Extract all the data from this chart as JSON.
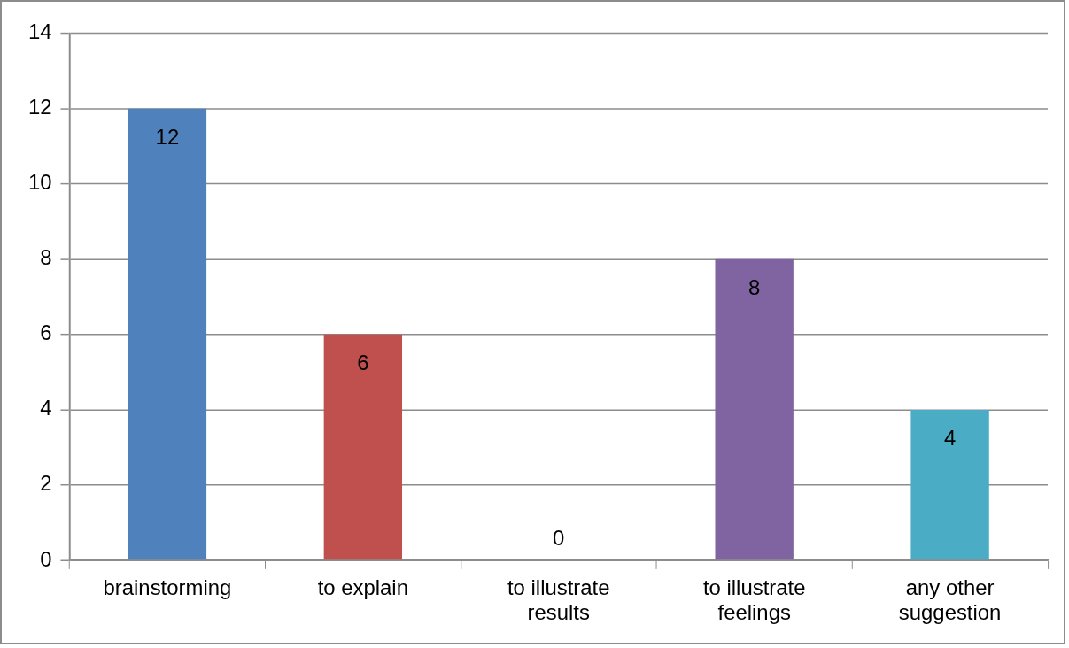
{
  "chart_data": {
    "type": "bar",
    "categories": [
      "brainstorming",
      "to explain",
      "to illustrate results",
      "to illustrate feelings",
      "any other suggestion"
    ],
    "values": [
      12,
      6,
      0,
      8,
      4
    ],
    "colors": [
      "#4f81bd",
      "#c0504d",
      "#9bbb59",
      "#8064a2",
      "#4bacc6"
    ],
    "ylim": [
      0,
      14
    ],
    "yticks": [
      0,
      2,
      4,
      6,
      8,
      10,
      12,
      14
    ],
    "grid": "y",
    "data_labels": true
  }
}
